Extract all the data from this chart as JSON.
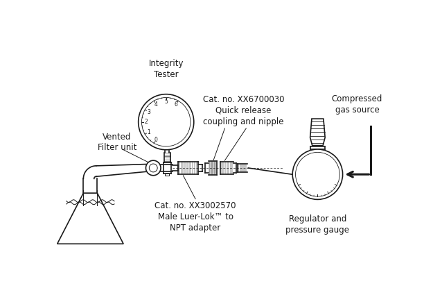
{
  "bg_color": "#ffffff",
  "line_color": "#1a1a1a",
  "labels": {
    "integrity_tester": "Integrity\nTester",
    "vented_filter": "Vented\nFilter unit",
    "cat_quick": "Cat. no. XX6700030\nQuick release\ncoupling and nipple",
    "cat_luer": "Cat. no. XX3002570\nMale Luer-Lok™ to\nNPT adapter",
    "compressed": "Compressed\ngas source",
    "regulator": "Regulator and\npressure gauge"
  },
  "figsize": [
    6.12,
    4.25
  ],
  "dpi": 100
}
